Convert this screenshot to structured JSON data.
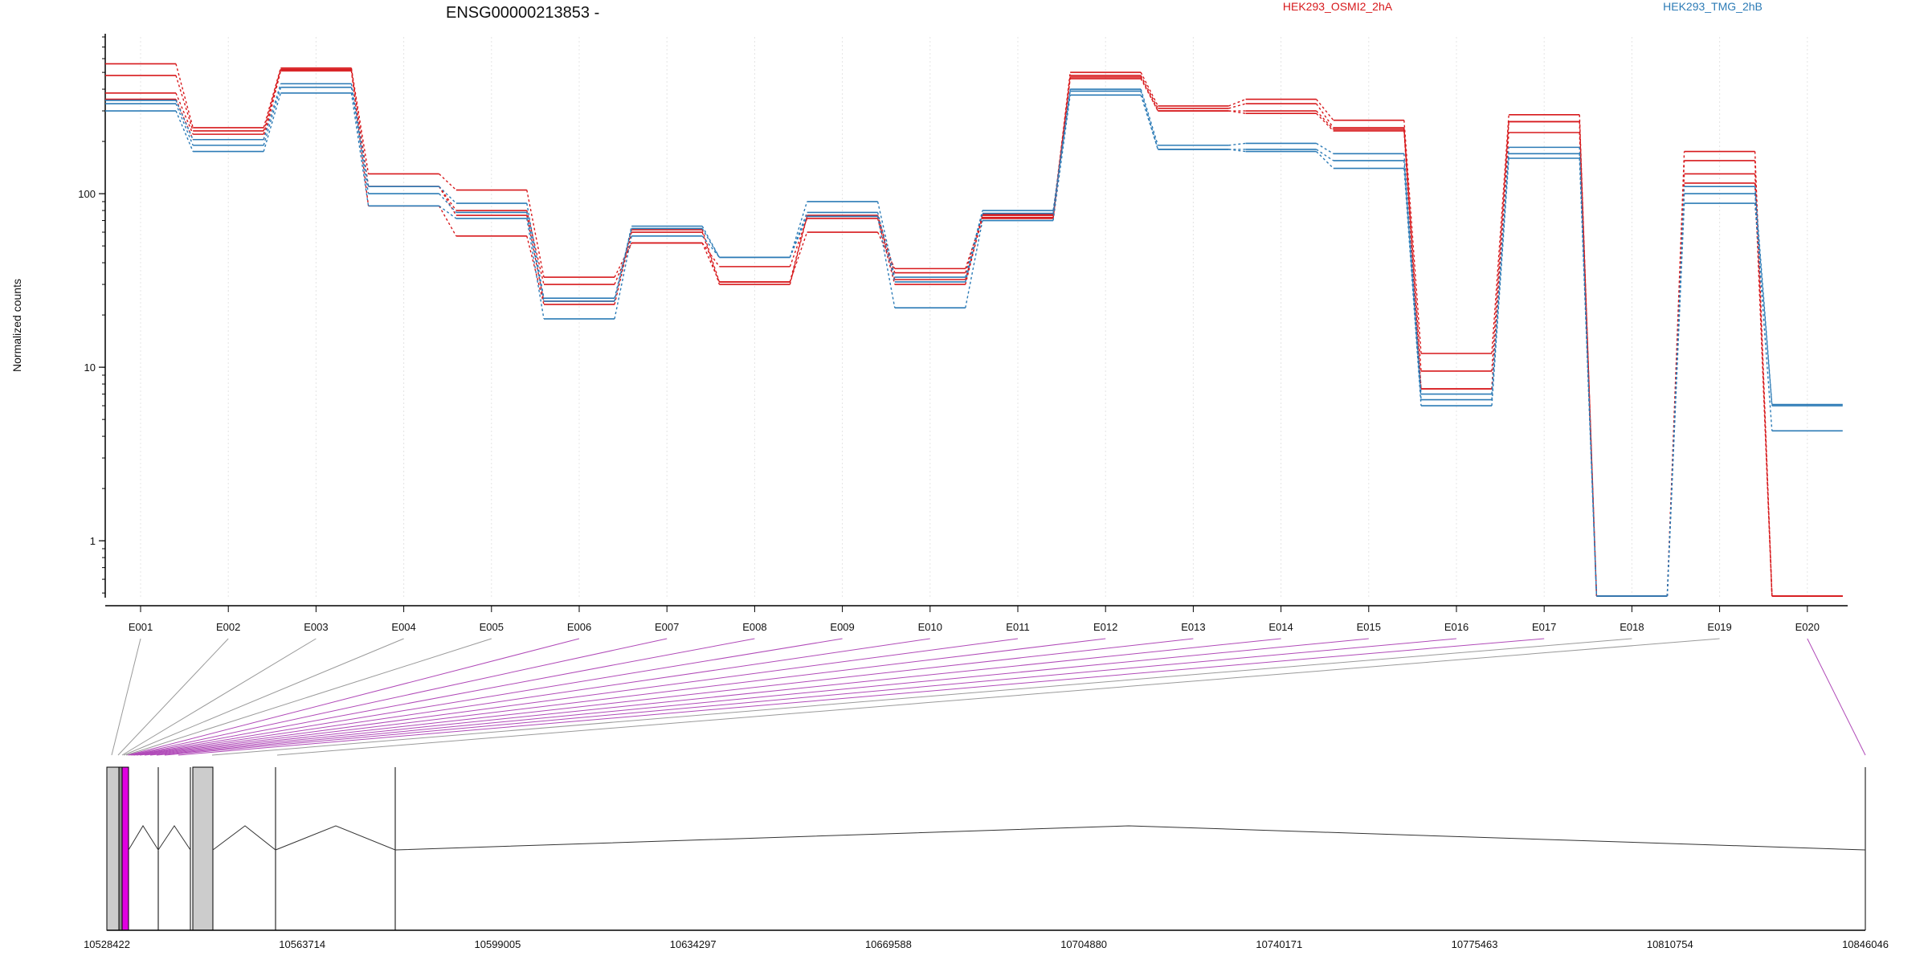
{
  "chart_data": {
    "type": "line",
    "title": "ENSG00000213853 -",
    "ylabel": "Normalized counts",
    "xlabel": "",
    "yscale": "log",
    "ylim": [
      0.48,
      800
    ],
    "yticks": [
      {
        "value": 1,
        "label": "1"
      },
      {
        "value": 10,
        "label": "10"
      },
      {
        "value": 100,
        "label": "100"
      }
    ],
    "grid": "vertical dotted lines at each exon",
    "categories": [
      "E001",
      "E002",
      "E003",
      "E004",
      "E005",
      "E006",
      "E007",
      "E008",
      "E009",
      "E010",
      "E011",
      "E012",
      "E013",
      "E014",
      "E015",
      "E016",
      "E017",
      "E018",
      "E019",
      "E020"
    ],
    "groups": [
      {
        "name": "HEK293_OSMI2_2hA",
        "color": "#d7191c",
        "legend_position": "top-center"
      },
      {
        "name": "HEK293_TMG_2hB",
        "color": "#2c7bb6",
        "legend_position": "top-right"
      }
    ],
    "series": [
      {
        "group": 0,
        "values": [
          560,
          240,
          530,
          130,
          105,
          33,
          52,
          38,
          72,
          30,
          75,
          500,
          320,
          350,
          265,
          12,
          285,
          0.48,
          175,
          0.48
        ]
      },
      {
        "group": 0,
        "values": [
          480,
          230,
          520,
          110,
          80,
          30,
          52,
          31,
          75,
          35,
          76,
          480,
          310,
          330,
          240,
          9.5,
          260,
          0.48,
          155,
          0.48
        ]
      },
      {
        "group": 0,
        "values": [
          380,
          220,
          520,
          110,
          75,
          24,
          62,
          31,
          60,
          37,
          73,
          470,
          300,
          300,
          235,
          7.5,
          225,
          0.48,
          130,
          0.48
        ]
      },
      {
        "group": 0,
        "values": [
          350,
          205,
          510,
          85,
          57,
          23,
          60,
          30,
          74,
          32,
          72,
          460,
          300,
          290,
          230,
          7.5,
          260,
          0.48,
          115,
          0.48
        ]
      },
      {
        "group": 1,
        "values": [
          345,
          205,
          430,
          110,
          88,
          25,
          63,
          43,
          90,
          33,
          80,
          400,
          190,
          195,
          170,
          7,
          185,
          0.48,
          110,
          6.1
        ]
      },
      {
        "group": 1,
        "values": [
          330,
          190,
          410,
          100,
          78,
          24,
          65,
          43,
          78,
          31,
          77,
          390,
          180,
          180,
          155,
          6.5,
          170,
          0.48,
          100,
          6.0
        ]
      },
      {
        "group": 1,
        "values": [
          300,
          175,
          380,
          85,
          72,
          19,
          57,
          43,
          74,
          22,
          70,
          370,
          180,
          175,
          140,
          6.0,
          160,
          0.48,
          88,
          4.3
        ]
      }
    ],
    "genome_axis": {
      "ticks": [
        "10528422",
        "10563714",
        "10599005",
        "10634297",
        "10669588",
        "10704880",
        "10740171",
        "10775463",
        "10810754",
        "10846046"
      ]
    }
  }
}
